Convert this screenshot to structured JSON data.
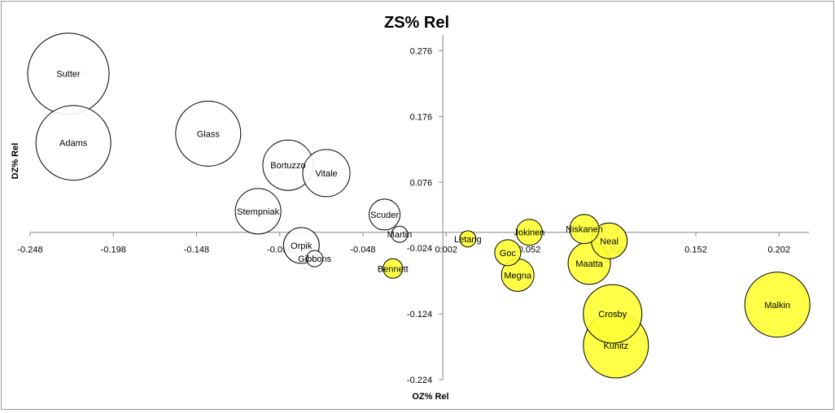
{
  "chart_data": {
    "type": "bubble",
    "title": "ZS% Rel",
    "xlabel": "OZ% Rel",
    "ylabel": "DZ% Rel",
    "xlim": [
      -0.248,
      0.22
    ],
    "ylim": [
      -0.224,
      0.3
    ],
    "x_ticks": [
      "-0.248",
      "-0.198",
      "-0.148",
      "-0.098",
      "-0.048",
      "0.002",
      "0.052",
      "0.102",
      "0.152",
      "0.202"
    ],
    "y_ticks": [
      "0.276",
      "0.176",
      "0.076",
      "-0.024",
      "-0.124",
      "-0.224"
    ],
    "grid": false,
    "legend": "none",
    "colors": {
      "negative": "#ffffff",
      "positive": "#ffff33",
      "stroke": "#000000"
    },
    "points": [
      {
        "name": "Sutter",
        "x": -0.225,
        "y": 0.241,
        "size": 50,
        "group": "negative"
      },
      {
        "name": "Adams",
        "x": -0.222,
        "y": 0.136,
        "size": 46,
        "group": "negative"
      },
      {
        "name": "Glass",
        "x": -0.141,
        "y": 0.15,
        "size": 40,
        "group": "negative"
      },
      {
        "name": "Bortuzzo",
        "x": -0.093,
        "y": 0.102,
        "size": 31,
        "group": "negative"
      },
      {
        "name": "Vitale",
        "x": -0.07,
        "y": 0.09,
        "size": 29,
        "group": "negative"
      },
      {
        "name": "Stempniak",
        "x": -0.111,
        "y": 0.032,
        "size": 28,
        "group": "negative"
      },
      {
        "name": "Orpik",
        "x": -0.085,
        "y": -0.02,
        "size": 22,
        "group": "negative"
      },
      {
        "name": "Gibbons",
        "x": -0.077,
        "y": -0.04,
        "size": 10,
        "group": "negative"
      },
      {
        "name": "Scuder",
        "x": -0.035,
        "y": 0.027,
        "size": 19,
        "group": "negative"
      },
      {
        "name": "Martin",
        "x": -0.026,
        "y": -0.003,
        "size": 10,
        "group": "negative"
      },
      {
        "name": "Bennett",
        "x": -0.03,
        "y": -0.055,
        "size": 12,
        "group": "positive"
      },
      {
        "name": "Letang",
        "x": 0.015,
        "y": -0.01,
        "size": 10,
        "group": "positive"
      },
      {
        "name": "Jokinen",
        "x": 0.052,
        "y": 0.0,
        "size": 16,
        "group": "positive"
      },
      {
        "name": "Goc",
        "x": 0.039,
        "y": -0.031,
        "size": 16,
        "group": "positive"
      },
      {
        "name": "Megna",
        "x": 0.045,
        "y": -0.065,
        "size": 20,
        "group": "positive"
      },
      {
        "name": "Niskanen",
        "x": 0.085,
        "y": 0.005,
        "size": 18,
        "group": "positive"
      },
      {
        "name": "Neal",
        "x": 0.1,
        "y": -0.013,
        "size": 22,
        "group": "positive"
      },
      {
        "name": "Maatta",
        "x": 0.088,
        "y": -0.047,
        "size": 26,
        "group": "positive"
      },
      {
        "name": "Crosby",
        "x": 0.102,
        "y": -0.124,
        "size": 36,
        "group": "positive"
      },
      {
        "name": "Kunitz",
        "x": 0.104,
        "y": -0.172,
        "size": 40,
        "group": "positive"
      },
      {
        "name": "Malkin",
        "x": 0.201,
        "y": -0.11,
        "size": 40,
        "group": "positive"
      }
    ]
  }
}
